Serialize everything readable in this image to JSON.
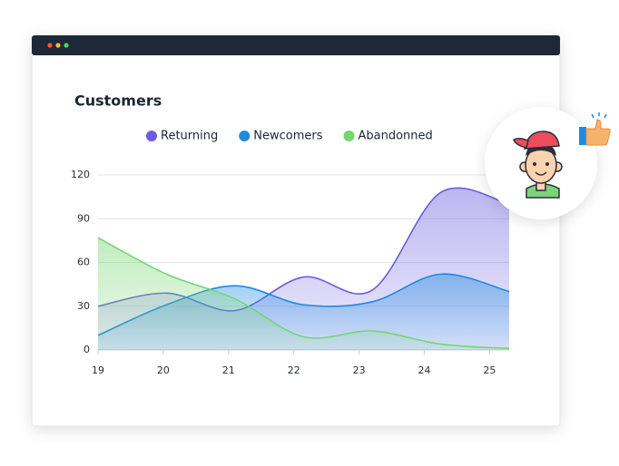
{
  "chart_data": {
    "type": "area",
    "title": "Customers",
    "x": [
      19,
      20.05,
      21.1,
      22.15,
      23.2,
      24.25,
      25.3
    ],
    "xlim": [
      19,
      25.3
    ],
    "xticks": [
      19,
      20,
      21,
      22,
      23,
      24,
      25
    ],
    "ylim": [
      0,
      120
    ],
    "yticks": [
      0,
      30,
      60,
      90,
      120
    ],
    "grid": true,
    "series": [
      {
        "name": "Returning",
        "color": "#6a5ddf",
        "values": [
          30,
          39,
          27,
          50,
          41,
          108,
          100
        ]
      },
      {
        "name": "Newcomers",
        "color": "#1f8ae0",
        "values": [
          10,
          31,
          44,
          31,
          33,
          52,
          40
        ]
      },
      {
        "name": "Abandonned",
        "color": "#74d670",
        "values": [
          77,
          52,
          35,
          9,
          13,
          4,
          1
        ]
      }
    ]
  }
}
